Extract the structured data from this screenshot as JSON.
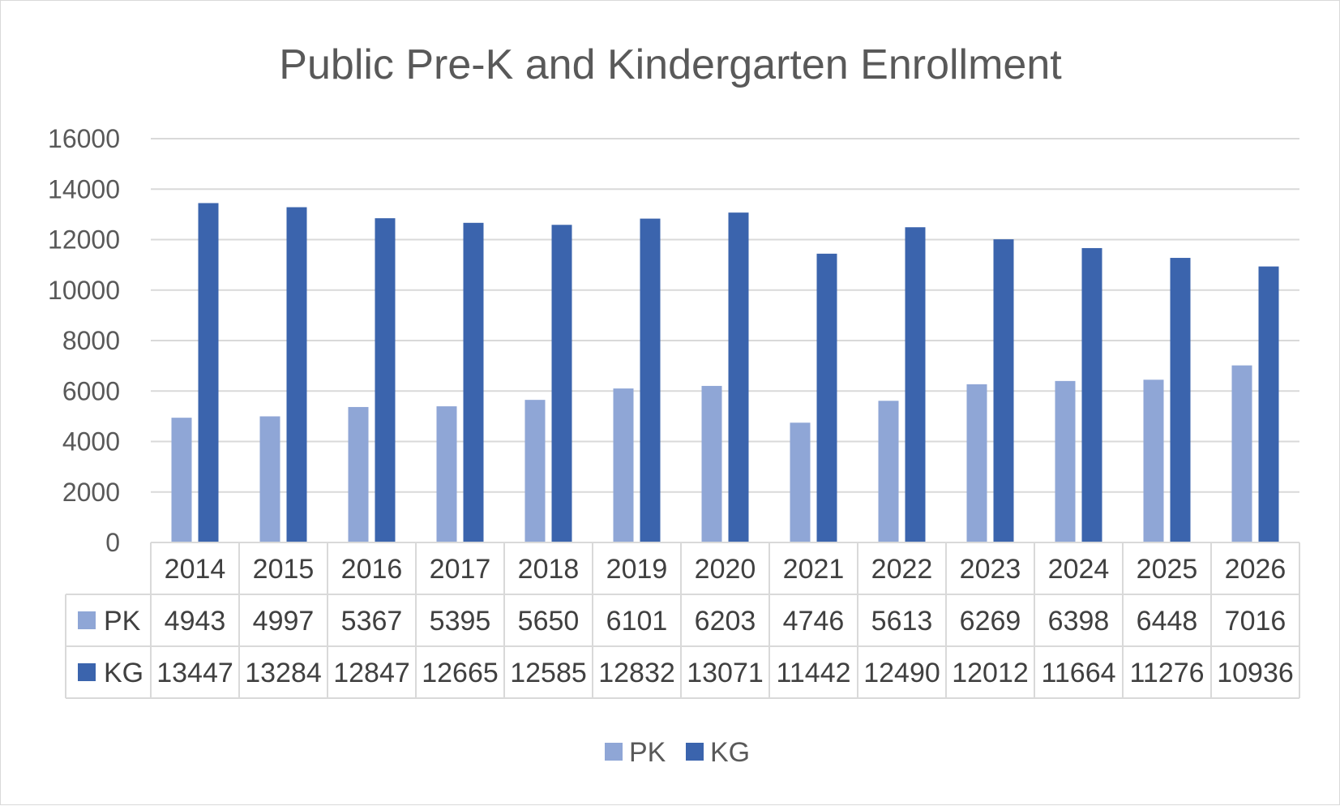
{
  "chart_data": {
    "type": "bar",
    "title": "Public Pre-K and Kindergarten Enrollment",
    "categories": [
      "2014",
      "2015",
      "2016",
      "2017",
      "2018",
      "2019",
      "2020",
      "2021",
      "2022",
      "2023",
      "2024",
      "2025",
      "2026"
    ],
    "series": [
      {
        "name": "PK",
        "color": "#8fa6d6",
        "values": [
          4943,
          4997,
          5367,
          5395,
          5650,
          6101,
          6203,
          4746,
          5613,
          6269,
          6398,
          6448,
          7016
        ]
      },
      {
        "name": "KG",
        "color": "#3b64ad",
        "values": [
          13447,
          13284,
          12847,
          12665,
          12585,
          12832,
          13071,
          11442,
          12490,
          12012,
          11664,
          11276,
          10936
        ]
      }
    ],
    "ylim": [
      0,
      16000
    ],
    "yticks": [
      0,
      2000,
      4000,
      6000,
      8000,
      10000,
      12000,
      14000,
      16000
    ],
    "grid": true,
    "legend": "bottom",
    "data_table": true
  }
}
